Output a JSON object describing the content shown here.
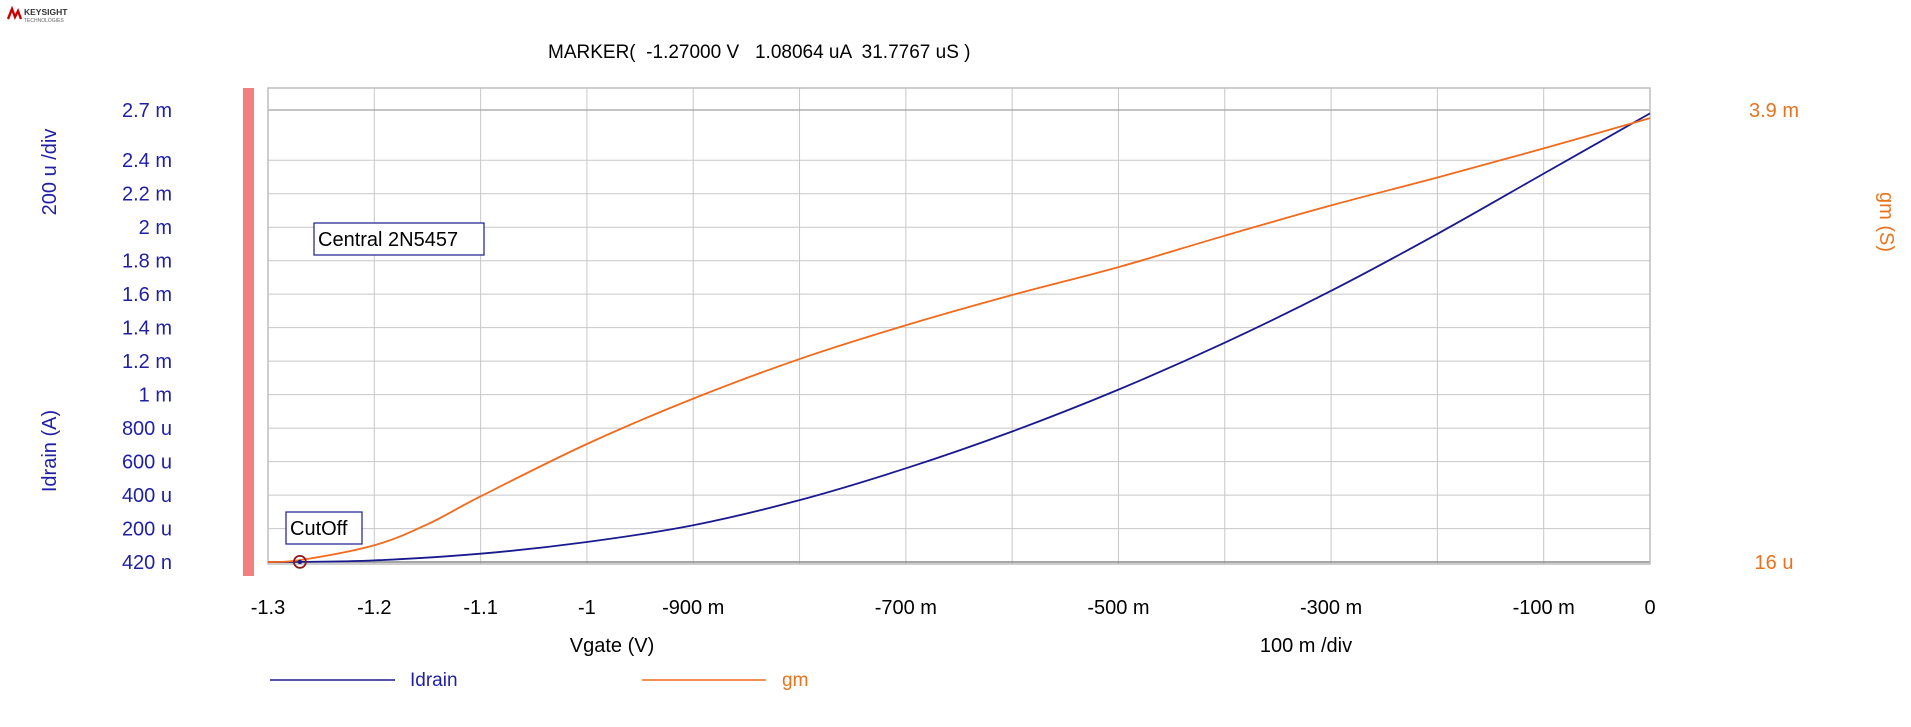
{
  "brand": {
    "name": "KEYSIGHT",
    "sub": "TECHNOLOGIES",
    "color": "#cc0000"
  },
  "colors": {
    "idrain": "#1a1a8f",
    "gm": "#f26a1b",
    "grid": "#c8c8c8",
    "left_axis_text": "#1f1fa6",
    "right_axis_text": "#e8731f",
    "cutoff_bar": "#f28080"
  },
  "marker": {
    "text": "MARKER(  -1.27000 V   1.08064 uA  31.7767 uS )"
  },
  "chart_data": {
    "type": "line",
    "title": "",
    "xlabel": "Vgate (V)",
    "x_div_label": "100 m /div",
    "xlim": [
      -1.3,
      0
    ],
    "x_ticks": [
      -1.3,
      -1.2,
      -1.1,
      -1.0,
      -0.9,
      -0.7,
      -0.5,
      -0.3,
      -0.1,
      0
    ],
    "x_tick_labels": [
      "-1.3",
      "-1.2",
      "-1.1",
      "-1",
      "-900 m",
      "-700 m",
      "-500 m",
      "-300 m",
      "-100 m",
      "0"
    ],
    "x_grid_lines": [
      -1.2,
      -1.1,
      -1.0,
      -0.9,
      -0.8,
      -0.7,
      -0.6,
      -0.5,
      -0.4,
      -0.3,
      -0.2,
      -0.1,
      0
    ],
    "left_axis": {
      "label": "Idrain (A)",
      "div_label": "200 u /div",
      "unit": "A",
      "min": 4.2e-07,
      "max": 0.0027,
      "tick_values": [
        4.2e-07,
        0.0002,
        0.0004,
        0.0006,
        0.0008,
        0.001,
        0.0012,
        0.0014,
        0.0016,
        0.0018,
        0.002,
        0.0022,
        0.0024,
        0.0027
      ],
      "tick_labels": [
        "420 n",
        "200 u",
        "400 u",
        "600 u",
        "800 u",
        "1 m",
        "1.2 m",
        "1.4 m",
        "1.6 m",
        "1.8 m",
        "2 m",
        "2.2 m",
        "2.4 m",
        "2.7 m"
      ]
    },
    "right_axis": {
      "label": "gm (S)",
      "unit": "S",
      "min": 1.6e-05,
      "max": 0.0039,
      "tick_values": [
        1.6e-05,
        0.0039
      ],
      "tick_labels": [
        "16 u",
        "3.9 m"
      ]
    },
    "series": [
      {
        "name": "Idrain",
        "axis": "left",
        "color": "#1a1a8f",
        "x": [
          -1.3,
          -1.27,
          -1.2,
          -1.1,
          -1.0,
          -0.9,
          -0.8,
          -0.7,
          -0.6,
          -0.5,
          -0.4,
          -0.3,
          -0.2,
          -0.1,
          0
        ],
        "y": [
          3e-07,
          1.1e-06,
          1e-05,
          5e-05,
          0.00012,
          0.00022,
          0.00037,
          0.00056,
          0.00078,
          0.00103,
          0.00131,
          0.00162,
          0.00196,
          0.00232,
          0.00268
        ]
      },
      {
        "name": "gm",
        "axis": "right",
        "color": "#f26a1b",
        "x": [
          -1.3,
          -1.27,
          -1.2,
          -1.15,
          -1.1,
          -1.0,
          -0.9,
          -0.8,
          -0.7,
          -0.6,
          -0.5,
          -0.4,
          -0.3,
          -0.2,
          -0.1,
          0
        ],
        "y": [
          1.6e-05,
          3.18e-05,
          0.00016,
          0.00034,
          0.00058,
          0.00103,
          0.00142,
          0.00176,
          0.00205,
          0.00231,
          0.00255,
          0.00282,
          0.00308,
          0.00332,
          0.00357,
          0.00383
        ]
      }
    ],
    "annotations": [
      {
        "text": "Central 2N5457"
      },
      {
        "text": "CutOff"
      }
    ],
    "marker_point": {
      "x": -1.27,
      "idrain": 1.08064e-06,
      "gm": 3.17767e-05
    },
    "legend": {
      "position": "bottom",
      "entries": [
        "Idrain",
        "gm"
      ]
    },
    "grid": true
  }
}
